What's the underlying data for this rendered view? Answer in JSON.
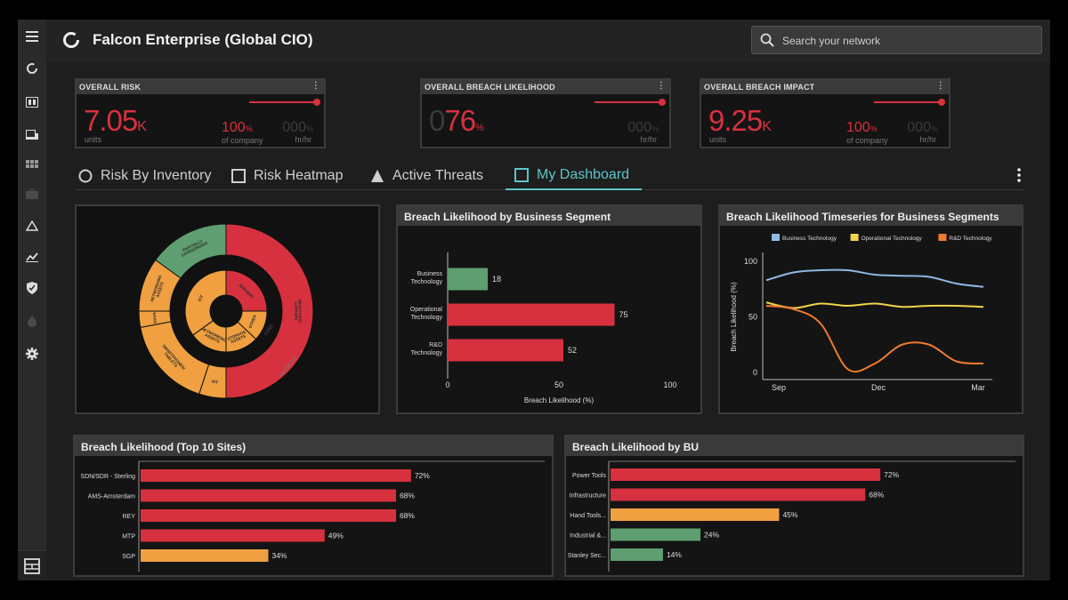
{
  "app": {
    "title": "Falcon Enterprise  (Global CIO)"
  },
  "search": {
    "placeholder": "Search your network"
  },
  "sidebar": {
    "items": [
      "menu-icon",
      "risk-ring-icon",
      "inventory-icon",
      "devices-icon",
      "grid-icon",
      "briefcase-icon",
      "threat-triangle-icon",
      "trend-chart-icon",
      "shield-icon",
      "flame-icon",
      "gear-icon"
    ]
  },
  "kpis": [
    {
      "title": "OVERALL RISK",
      "value": "7.05",
      "value_suffix": "K",
      "sub": "units",
      "pct": "100",
      "pct_unit": "%",
      "pct_label": "of company",
      "ghost": "000",
      "ghost_unit": "%",
      "ghost_label": "hr/hr",
      "color": "#d7313f"
    },
    {
      "title": "OVERALL BREACH LIKELIHOOD",
      "value_ghost": "0",
      "value": "76",
      "value_suffix": "%",
      "sub": "",
      "pct": "",
      "pct_unit": "",
      "pct_label": "",
      "ghost": "000",
      "ghost_unit": "%",
      "ghost_label": "hr/hr",
      "color": "#d7313f"
    },
    {
      "title": "OVERALL BREACH IMPACT",
      "value": "9.25",
      "value_suffix": "K",
      "sub": "units",
      "pct": "100",
      "pct_unit": "%",
      "pct_label": "of company",
      "ghost": "000",
      "ghost_unit": "%",
      "ghost_label": "hr/hr",
      "color": "#d7313f"
    }
  ],
  "tabs": [
    {
      "label": "Risk By Inventory",
      "icon": "circle-outline-icon"
    },
    {
      "label": "Risk Heatmap",
      "icon": "square-outline-icon"
    },
    {
      "label": "Active Threats",
      "icon": "triangle-icon"
    },
    {
      "label": "My Dashboard",
      "icon": "square-outline-icon",
      "active": true
    }
  ],
  "colors": {
    "red": "#d7313f",
    "orange": "#f0a040",
    "green": "#5f9e70",
    "accent": "#5ec4c9"
  },
  "sunburst": {
    "outer": [
      {
        "label": "DESKTOPS/ LAPTOPS",
        "value": 50,
        "color": "#d7313f"
      },
      {
        "label": "IOT",
        "value": 5,
        "color": "#f0a040"
      },
      {
        "label": "SMARTPHONES/ TABLETS",
        "value": 17,
        "color": "#f0a040"
      },
      {
        "label": "SAAS",
        "value": 3,
        "color": "#f0a040"
      },
      {
        "label": "NETWORKING ASSETS",
        "value": 10,
        "color": "#f0a040"
      },
      {
        "label": "PARTIALLY CATEGORIZED",
        "value": 15,
        "color": "#5f9e70"
      }
    ],
    "ring_labels": [
      "CORE",
      "PERIMETER"
    ],
    "inner": [
      {
        "label": "SERVERS",
        "value": 25,
        "color": "#d7313f"
      },
      {
        "label": "OTHER",
        "value": 12,
        "color": "#f0a040"
      },
      {
        "label": "STORAGE ASSETS",
        "value": 13,
        "color": "#f0a040"
      },
      {
        "label": "NETWORKING ASSETS",
        "value": 15,
        "color": "#f0a040"
      },
      {
        "label": "IOT",
        "value": 35,
        "color": "#f0a040"
      }
    ]
  },
  "panels": {
    "segment": {
      "title": "Breach Likelihood by Business Segment"
    },
    "timeseries": {
      "title": "Breach Likelihood Timeseries for Business Segments"
    },
    "sites": {
      "title": "Breach Likelihood (Top 10 Sites)"
    },
    "bu": {
      "title": "Breach Likelihood by BU"
    }
  },
  "chart_data": [
    {
      "type": "bar",
      "orientation": "horizontal",
      "title": "Breach Likelihood by Business Segment",
      "categories": [
        "Business Technology",
        "Operational Technology",
        "R&D Technology"
      ],
      "values": [
        18,
        75,
        52
      ],
      "colors": [
        "#5f9e70",
        "#d7313f",
        "#d7313f"
      ],
      "xlabel": "Breach Likelihood (%)",
      "xlim": [
        0,
        100
      ],
      "xticks": [
        0,
        50,
        100
      ]
    },
    {
      "type": "line",
      "title": "Breach Likelihood Timeseries for Business Segments",
      "ylabel": "Breach Likelihood (%)",
      "xticks": [
        "Sep",
        "Dec",
        "Mar"
      ],
      "yticks": [
        0,
        50,
        100
      ],
      "ylim": [
        0,
        100
      ],
      "legend": "top",
      "x": [
        0,
        1,
        2,
        3,
        4,
        5,
        6,
        7,
        8
      ],
      "series": [
        {
          "name": "Business Technology",
          "color": "#8fb9e3",
          "values": [
            83,
            90,
            92,
            92,
            88,
            87,
            86,
            80,
            77
          ]
        },
        {
          "name": "Operational Technology",
          "color": "#f2d34a",
          "values": [
            63,
            58,
            62,
            60,
            62,
            59,
            60,
            60,
            59
          ]
        },
        {
          "name": "R&D Technology",
          "color": "#f07a30",
          "values": [
            60,
            57,
            44,
            3,
            8,
            25,
            25,
            10,
            8
          ]
        }
      ]
    },
    {
      "type": "bar",
      "orientation": "horizontal",
      "title": "Breach Likelihood (Top 10 Sites)",
      "categories": [
        "SDN/SDR - Sterling",
        "AMS-Amsterdam",
        "REY",
        "MTP",
        "SGP"
      ],
      "values": [
        72,
        68,
        68,
        49,
        34
      ],
      "labels": [
        "72%",
        "68%",
        "68%",
        "49%",
        "34%"
      ],
      "colors": [
        "#d7313f",
        "#d7313f",
        "#d7313f",
        "#d7313f",
        "#f0a040"
      ],
      "xlim": [
        0,
        100
      ]
    },
    {
      "type": "bar",
      "orientation": "horizontal",
      "title": "Breach Likelihood by BU",
      "categories": [
        "Power Tools",
        "Infrastructure",
        "Hand Tools...",
        "Industrial &...",
        "Stanley Sec..."
      ],
      "values": [
        72,
        68,
        45,
        24,
        14
      ],
      "labels": [
        "72%",
        "68%",
        "45%",
        "24%",
        "14%"
      ],
      "colors": [
        "#d7313f",
        "#d7313f",
        "#f0a040",
        "#5f9e70",
        "#5f9e70"
      ],
      "xlim": [
        0,
        100
      ]
    }
  ]
}
